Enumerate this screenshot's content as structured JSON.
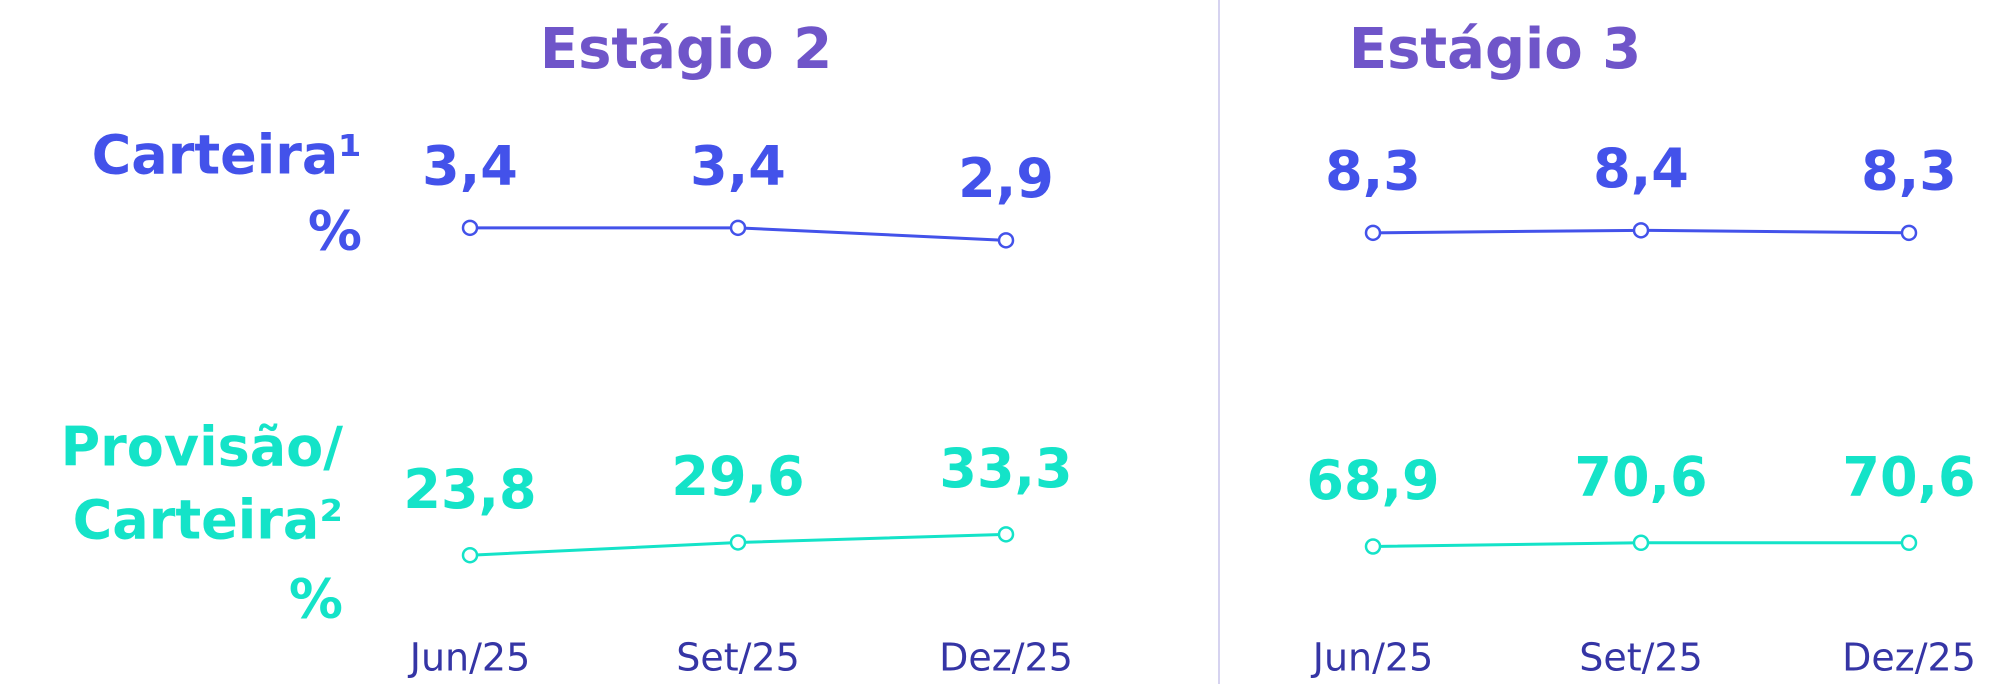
{
  "row_labels": [
    [
      "Carteira¹",
      "%"
    ],
    [
      "Provisão/",
      "Carteira²",
      "%"
    ]
  ],
  "chart_data": [
    {
      "type": "line",
      "title": "Estágio 2",
      "categories": [
        "Jun/25",
        "Set/25",
        "Dez/25"
      ],
      "series": [
        {
          "color": "#4352ea",
          "values": [
            3.4,
            3.4,
            2.9
          ],
          "value_labels": [
            "3,4",
            "3,4",
            "2,9"
          ]
        },
        {
          "color": "#14e3c8",
          "values": [
            23.8,
            29.6,
            33.3
          ],
          "value_labels": [
            "23,8",
            "29,6",
            "33,3"
          ]
        }
      ]
    },
    {
      "type": "line",
      "title": "Estágio 3",
      "categories": [
        "Jun/25",
        "Set/25",
        "Dez/25"
      ],
      "series": [
        {
          "color": "#4352ea",
          "values": [
            8.3,
            8.4,
            8.3
          ],
          "value_labels": [
            "8,3",
            "8,4",
            "8,3"
          ]
        },
        {
          "color": "#14e3c8",
          "values": [
            68.9,
            70.6,
            70.6
          ],
          "value_labels": [
            "68,9",
            "70,6",
            "70,6"
          ]
        }
      ]
    }
  ]
}
